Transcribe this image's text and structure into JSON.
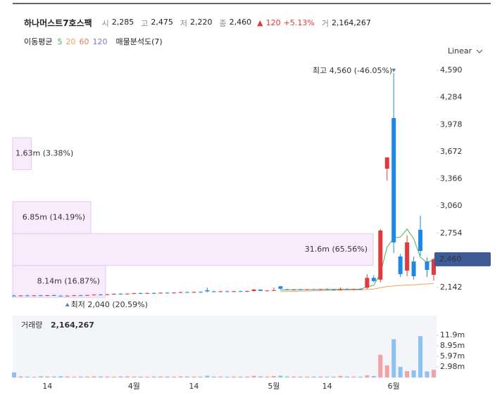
{
  "chart_data": {
    "type": "candlestick",
    "title": "하나머스트7호스팩",
    "quote": [
      {
        "label": "시",
        "text": "2,285"
      },
      {
        "label": "고",
        "text": "2,475"
      },
      {
        "label": "저",
        "text": "2,220"
      },
      {
        "label": "종",
        "text": "2,460"
      }
    ],
    "change": "120",
    "change_pct": "+5.13%",
    "volume_label": "거",
    "volume_text": "2,164,267",
    "ma_label": "이동평균",
    "profile_label": "매물분석도(7)",
    "scale_label": "Linear",
    "volume_title": "거래량",
    "high_marker": "최고 4,560 (-46.05%)",
    "low_marker": "최저 2,040 (20.59%)",
    "up_color": "#e0393e",
    "down_color": "#1e88e5",
    "categories": [
      null,
      null,
      null,
      null,
      null,
      "14",
      null,
      null,
      null,
      null,
      null,
      null,
      null,
      null,
      null,
      null,
      null,
      null,
      "4월",
      null,
      null,
      null,
      null,
      null,
      null,
      null,
      null,
      "14",
      null,
      null,
      null,
      null,
      null,
      null,
      null,
      null,
      null,
      null,
      null,
      "5월",
      null,
      null,
      null,
      null,
      null,
      null,
      null,
      "14",
      null,
      null,
      null,
      null,
      null,
      null,
      null,
      null,
      null,
      "6월",
      null,
      null,
      null,
      null,
      null,
      null
    ],
    "open": [
      2050,
      2048,
      2052,
      2047,
      2053,
      2050,
      2055,
      2049,
      2046,
      2050,
      2054,
      2051,
      2057,
      2062,
      2058,
      2065,
      2070,
      2067,
      2073,
      2078,
      2075,
      2080,
      2077,
      2083,
      2079,
      2085,
      2090,
      2086,
      2092,
      2110,
      2098,
      2094,
      2099,
      2095,
      2100,
      2096,
      2102,
      2118,
      2104,
      2108,
      2155,
      2120,
      2115,
      2120,
      2116,
      2122,
      2118,
      2124,
      2120,
      2115,
      2125,
      2121,
      2126,
      2140,
      2250,
      2230,
      3481,
      4052,
      2491,
      2332,
      2435,
      2792,
      2435,
      2285
    ],
    "high": [
      2060,
      2055,
      2058,
      2056,
      2060,
      2057,
      2062,
      2054,
      2052,
      2058,
      2060,
      2059,
      2066,
      2070,
      2068,
      2074,
      2078,
      2076,
      2082,
      2086,
      2084,
      2088,
      2085,
      2090,
      2088,
      2094,
      2098,
      2095,
      2100,
      2140,
      2105,
      2102,
      2106,
      2103,
      2108,
      2105,
      2125,
      2122,
      2112,
      2140,
      2160,
      2128,
      2124,
      2128,
      2125,
      2130,
      2127,
      2132,
      2128,
      2140,
      2132,
      2130,
      2134,
      2290,
      2280,
      2800,
      3610,
      4560,
      2520,
      2730,
      2490,
      2950,
      2480,
      2475
    ],
    "low": [
      2045,
      2042,
      2046,
      2044,
      2048,
      2045,
      2048,
      2043,
      2040,
      2046,
      2049,
      2047,
      2052,
      2056,
      2054,
      2060,
      2064,
      2062,
      2068,
      2072,
      2070,
      2074,
      2072,
      2076,
      2074,
      2080,
      2083,
      2080,
      2086,
      2088,
      2090,
      2088,
      2092,
      2088,
      2094,
      2090,
      2096,
      2100,
      2098,
      2102,
      2120,
      2110,
      2108,
      2112,
      2110,
      2115,
      2112,
      2116,
      2112,
      2108,
      2116,
      2114,
      2118,
      2125,
      2200,
      2200,
      3347,
      2530,
      2260,
      2270,
      2230,
      2500,
      2260,
      2220
    ],
    "close": [
      2048,
      2052,
      2047,
      2053,
      2050,
      2055,
      2049,
      2046,
      2050,
      2054,
      2051,
      2057,
      2062,
      2058,
      2065,
      2070,
      2067,
      2073,
      2078,
      2075,
      2080,
      2077,
      2083,
      2079,
      2085,
      2090,
      2086,
      2092,
      2088,
      2098,
      2094,
      2099,
      2095,
      2100,
      2096,
      2102,
      2118,
      2104,
      2108,
      2112,
      2128,
      2115,
      2120,
      2116,
      2122,
      2118,
      2124,
      2120,
      2115,
      2125,
      2121,
      2126,
      2122,
      2250,
      2215,
      2784,
      3608,
      2650,
      2293,
      2650,
      2269,
      2554,
      2340,
      2460
    ],
    "volume": [
      1400000,
      300000,
      250000,
      200000,
      320000,
      280000,
      260000,
      350000,
      300000,
      220000,
      240000,
      260000,
      300000,
      280000,
      250000,
      230000,
      270000,
      300000,
      260000,
      240000,
      220000,
      250000,
      280000,
      260000,
      240000,
      300000,
      270000,
      250000,
      230000,
      500000,
      260000,
      240000,
      220000,
      250000,
      230000,
      260000,
      450000,
      300000,
      250000,
      400000,
      500000,
      280000,
      260000,
      240000,
      230000,
      250000,
      260000,
      240000,
      230000,
      420000,
      260000,
      240000,
      230000,
      600000,
      400000,
      6400000,
      3400000,
      10800000,
      3000000,
      1800000,
      2000000,
      11700000,
      1700000,
      2164267
    ],
    "moving_averages": [
      {
        "name": "5",
        "color": "#4caf50",
        "values": [
          null,
          null,
          null,
          null,
          null,
          null,
          null,
          null,
          null,
          null,
          null,
          null,
          null,
          null,
          null,
          null,
          null,
          null,
          null,
          null,
          null,
          null,
          null,
          null,
          null,
          null,
          null,
          null,
          null,
          null,
          null,
          null,
          null,
          null,
          null,
          null,
          null,
          null,
          null,
          null,
          2112,
          2115,
          2117,
          2118,
          2118,
          2118,
          2120,
          2120,
          2120,
          2121,
          2121,
          2122,
          2122,
          2149,
          2167,
          2299,
          2596,
          2701,
          2710,
          2800,
          2693,
          2483,
          2421,
          2455
        ]
      },
      {
        "name": "20",
        "color": "#f0a060",
        "values": [
          null,
          null,
          null,
          null,
          null,
          null,
          null,
          null,
          null,
          null,
          null,
          null,
          null,
          null,
          null,
          null,
          null,
          null,
          null,
          null,
          null,
          null,
          null,
          null,
          null,
          null,
          null,
          null,
          null,
          null,
          null,
          null,
          null,
          null,
          null,
          null,
          null,
          null,
          null,
          null,
          2095,
          2097,
          2099,
          2101,
          2103,
          2105,
          2107,
          2109,
          2110,
          2111,
          2112,
          2113,
          2114,
          2120,
          2125,
          2140,
          2152,
          2160,
          2165,
          2170,
          2172,
          2178,
          2182,
          2188
        ]
      },
      {
        "name": "60",
        "color": "#d9825b"
      },
      {
        "name": "120",
        "color": "#8a6fd1"
      }
    ],
    "ylim": [
      1857,
      4685
    ],
    "yticks": [
      {
        "value": 2142,
        "label": "2,142"
      },
      {
        "value": 2754,
        "label": "2,754"
      },
      {
        "value": 3060,
        "label": "3,060"
      },
      {
        "value": 3366,
        "label": "3,366"
      },
      {
        "value": 3672,
        "label": "3,672"
      },
      {
        "value": 3978,
        "label": "3,978"
      },
      {
        "value": 4284,
        "label": "4,284"
      },
      {
        "value": 4590,
        "label": "4,590"
      }
    ],
    "last_price": {
      "value": 2460,
      "label": "2,460"
    },
    "volume_ylim": [
      0,
      17300000
    ],
    "volume_yticks": [
      {
        "value": 2980000,
        "label": "2.98m"
      },
      {
        "value": 5970000,
        "label": "5.97m"
      },
      {
        "value": 8950000,
        "label": "8.95m"
      },
      {
        "value": 11900000,
        "label": "11.9m"
      }
    ],
    "volume_profile": {
      "bins": [
        2030,
        2390,
        2750,
        3110,
        3470,
        3830
      ],
      "values": [
        8140000,
        31600000,
        6850000,
        0,
        1630000
      ],
      "value_labels": [
        "8.14m (16.87%)",
        "31.6m (65.56%)",
        "6.85m (14.19%)",
        null,
        "1.63m (3.38%)"
      ]
    }
  }
}
